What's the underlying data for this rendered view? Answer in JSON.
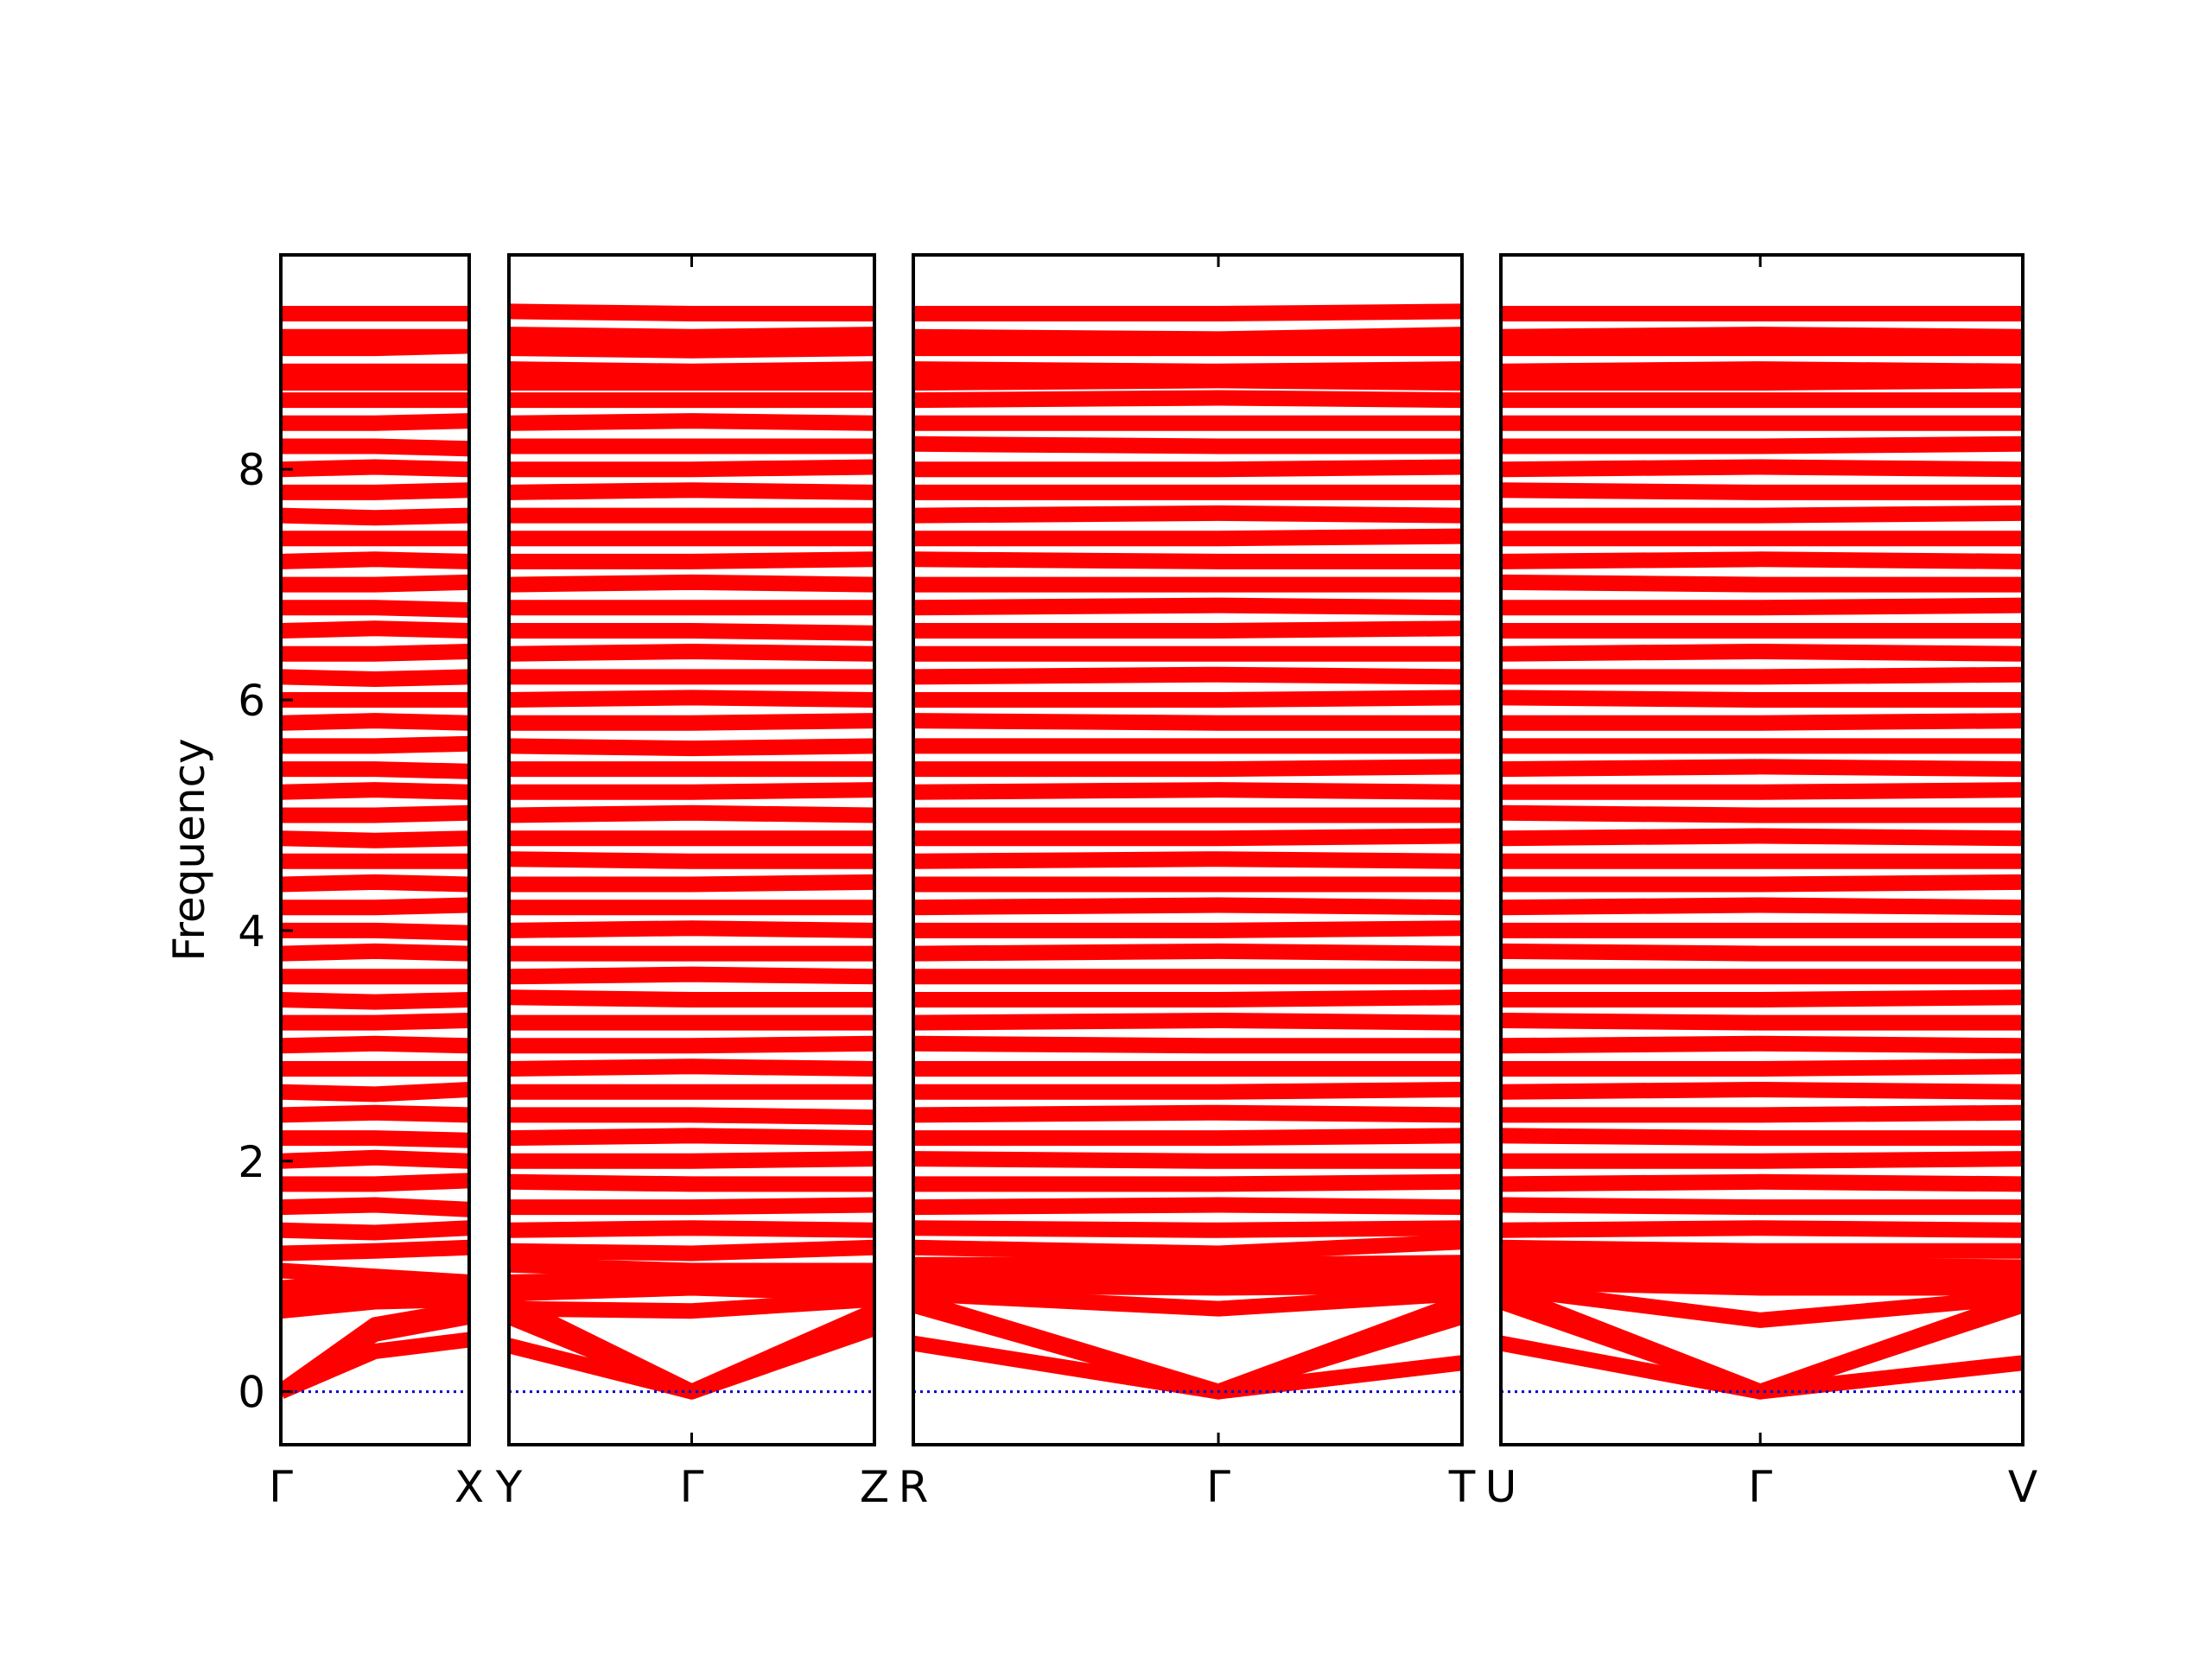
{
  "chart_data": [
    {
      "type": "line",
      "ylabel": "Frequency",
      "color": "#ff0000",
      "zero_line": {
        "value": 0,
        "color": "#0000cc"
      },
      "x": [
        0,
        0.5,
        1
      ],
      "xlim": [
        0,
        1
      ],
      "xticks": [
        {
          "value": 0,
          "label": "Γ"
        },
        {
          "value": 1,
          "label": "X"
        }
      ],
      "ylim": [
        -0.46,
        9.86
      ],
      "yticks": [
        0,
        2,
        4,
        6,
        8
      ],
      "bands": [
        [
          0,
          0.35,
          0.45
        ],
        [
          0,
          0.5,
          0.65
        ],
        [
          0,
          0.58,
          0.72
        ],
        [
          0.7,
          0.78,
          0.8
        ],
        [
          0.82,
          0.85,
          0.9
        ],
        [
          0.9,
          0.95,
          0.88
        ],
        [
          1.05,
          1.0,
          0.95
        ],
        [
          1.2,
          1.22,
          1.25
        ],
        [
          1.4,
          1.38,
          1.42
        ],
        [
          1.6,
          1.62,
          1.58
        ],
        [
          1.8,
          1.8,
          1.83
        ],
        [
          2.0,
          2.03,
          2.0
        ],
        [
          2.2,
          2.2,
          2.18
        ],
        [
          2.4,
          2.42,
          2.4
        ],
        [
          2.6,
          2.58,
          2.62
        ],
        [
          2.8,
          2.8,
          2.8
        ],
        [
          3.0,
          3.02,
          3.0
        ],
        [
          3.2,
          3.2,
          3.22
        ],
        [
          3.4,
          3.38,
          3.4
        ],
        [
          3.6,
          3.6,
          3.6
        ],
        [
          3.8,
          3.82,
          3.8
        ],
        [
          4.0,
          4.0,
          3.98
        ],
        [
          4.2,
          4.2,
          4.22
        ],
        [
          4.4,
          4.42,
          4.4
        ],
        [
          4.6,
          4.6,
          4.6
        ],
        [
          4.8,
          4.78,
          4.8
        ],
        [
          5.0,
          5.0,
          5.02
        ],
        [
          5.2,
          5.22,
          5.2
        ],
        [
          5.4,
          5.4,
          5.38
        ],
        [
          5.6,
          5.6,
          5.62
        ],
        [
          5.8,
          5.82,
          5.8
        ],
        [
          6.0,
          6.0,
          6.0
        ],
        [
          6.2,
          6.18,
          6.2
        ],
        [
          6.4,
          6.4,
          6.42
        ],
        [
          6.6,
          6.62,
          6.6
        ],
        [
          6.8,
          6.8,
          6.78
        ],
        [
          7.0,
          7.0,
          7.02
        ],
        [
          7.2,
          7.22,
          7.2
        ],
        [
          7.4,
          7.4,
          7.4
        ],
        [
          7.6,
          7.58,
          7.6
        ],
        [
          7.8,
          7.8,
          7.82
        ],
        [
          8.0,
          8.02,
          8.0
        ],
        [
          8.2,
          8.2,
          8.18
        ],
        [
          8.4,
          8.4,
          8.42
        ],
        [
          8.6,
          8.6,
          8.6
        ],
        [
          8.75,
          8.75,
          8.75
        ],
        [
          8.85,
          8.85,
          8.85
        ],
        [
          9.05,
          9.05,
          9.07
        ],
        [
          9.15,
          9.15,
          9.15
        ],
        [
          9.35,
          9.35,
          9.35
        ]
      ]
    },
    {
      "type": "line",
      "color": "#ff0000",
      "zero_line": {
        "value": 0,
        "color": "#0000cc"
      },
      "x": [
        0,
        0.5,
        1
      ],
      "xlim": [
        0,
        1
      ],
      "xticks": [
        {
          "value": 0,
          "label": "Y"
        },
        {
          "value": 0.5,
          "label": "Γ"
        },
        {
          "value": 1,
          "label": "Z"
        }
      ],
      "ylim": [
        -0.46,
        9.86
      ],
      "bands": [
        [
          0.4,
          0,
          0.55
        ],
        [
          0.65,
          0,
          0.6
        ],
        [
          0.78,
          0,
          0.7
        ],
        [
          0.72,
          0.7,
          0.8
        ],
        [
          0.85,
          0.9,
          0.85
        ],
        [
          0.95,
          0.98,
          0.95
        ],
        [
          1.1,
          1.05,
          1.05
        ],
        [
          1.22,
          1.2,
          1.25
        ],
        [
          1.4,
          1.42,
          1.4
        ],
        [
          1.6,
          1.6,
          1.62
        ],
        [
          1.82,
          1.8,
          1.8
        ],
        [
          2.0,
          2.0,
          2.02
        ],
        [
          2.2,
          2.22,
          2.2
        ],
        [
          2.4,
          2.4,
          2.38
        ],
        [
          2.6,
          2.6,
          2.6
        ],
        [
          2.8,
          2.82,
          2.8
        ],
        [
          3.0,
          3.0,
          3.02
        ],
        [
          3.2,
          3.2,
          3.2
        ],
        [
          3.42,
          3.4,
          3.4
        ],
        [
          3.6,
          3.62,
          3.6
        ],
        [
          3.8,
          3.8,
          3.8
        ],
        [
          4.0,
          4.02,
          4.0
        ],
        [
          4.2,
          4.2,
          4.2
        ],
        [
          4.4,
          4.4,
          4.42
        ],
        [
          4.62,
          4.6,
          4.6
        ],
        [
          4.8,
          4.8,
          4.8
        ],
        [
          5.0,
          5.02,
          5.0
        ],
        [
          5.2,
          5.2,
          5.22
        ],
        [
          5.4,
          5.4,
          5.4
        ],
        [
          5.6,
          5.58,
          5.6
        ],
        [
          5.8,
          5.8,
          5.82
        ],
        [
          6.0,
          6.02,
          6.0
        ],
        [
          6.2,
          6.2,
          6.2
        ],
        [
          6.4,
          6.42,
          6.4
        ],
        [
          6.6,
          6.6,
          6.58
        ],
        [
          6.8,
          6.8,
          6.8
        ],
        [
          7.0,
          7.02,
          7.0
        ],
        [
          7.2,
          7.2,
          7.22
        ],
        [
          7.4,
          7.4,
          7.4
        ],
        [
          7.6,
          7.6,
          7.6
        ],
        [
          7.8,
          7.82,
          7.8
        ],
        [
          8.0,
          8.0,
          8.02
        ],
        [
          8.2,
          8.2,
          8.2
        ],
        [
          8.4,
          8.42,
          8.4
        ],
        [
          8.6,
          8.6,
          8.6
        ],
        [
          8.75,
          8.75,
          8.75
        ],
        [
          8.87,
          8.85,
          8.87
        ],
        [
          9.05,
          9.03,
          9.05
        ],
        [
          9.17,
          9.15,
          9.17
        ],
        [
          9.37,
          9.35,
          9.35
        ]
      ]
    },
    {
      "type": "line",
      "color": "#ff0000",
      "zero_line": {
        "value": 0,
        "color": "#0000cc"
      },
      "x": [
        0,
        0.556,
        1
      ],
      "xlim": [
        0,
        1
      ],
      "xticks": [
        {
          "value": 0,
          "label": "R"
        },
        {
          "value": 0.556,
          "label": "Γ"
        },
        {
          "value": 1,
          "label": "T"
        }
      ],
      "ylim": [
        -0.46,
        9.86
      ],
      "bands": [
        [
          0.42,
          0,
          0.25
        ],
        [
          0.75,
          0,
          0.65
        ],
        [
          0.8,
          0,
          0.78
        ],
        [
          0.85,
          0.72,
          0.85
        ],
        [
          0.92,
          0.9,
          0.92
        ],
        [
          1.0,
          0.98,
          1.0
        ],
        [
          1.1,
          1.1,
          1.12
        ],
        [
          1.25,
          1.2,
          1.3
        ],
        [
          1.42,
          1.4,
          1.42
        ],
        [
          1.6,
          1.62,
          1.6
        ],
        [
          1.8,
          1.8,
          1.82
        ],
        [
          2.02,
          2.0,
          2.0
        ],
        [
          2.2,
          2.2,
          2.22
        ],
        [
          2.4,
          2.42,
          2.4
        ],
        [
          2.6,
          2.6,
          2.62
        ],
        [
          2.8,
          2.8,
          2.8
        ],
        [
          3.02,
          3.0,
          3.0
        ],
        [
          3.2,
          3.22,
          3.2
        ],
        [
          3.4,
          3.4,
          3.42
        ],
        [
          3.6,
          3.6,
          3.6
        ],
        [
          3.8,
          3.82,
          3.8
        ],
        [
          4.0,
          4.0,
          4.02
        ],
        [
          4.2,
          4.22,
          4.2
        ],
        [
          4.4,
          4.4,
          4.4
        ],
        [
          4.6,
          4.62,
          4.6
        ],
        [
          4.8,
          4.8,
          4.82
        ],
        [
          5.0,
          5.0,
          5.0
        ],
        [
          5.2,
          5.22,
          5.2
        ],
        [
          5.4,
          5.4,
          5.42
        ],
        [
          5.6,
          5.6,
          5.6
        ],
        [
          5.82,
          5.8,
          5.8
        ],
        [
          6.0,
          6.0,
          6.02
        ],
        [
          6.2,
          6.22,
          6.2
        ],
        [
          6.4,
          6.4,
          6.4
        ],
        [
          6.6,
          6.6,
          6.62
        ],
        [
          6.8,
          6.82,
          6.8
        ],
        [
          7.0,
          7.0,
          7.0
        ],
        [
          7.22,
          7.2,
          7.2
        ],
        [
          7.4,
          7.4,
          7.42
        ],
        [
          7.6,
          7.62,
          7.6
        ],
        [
          7.8,
          7.8,
          7.8
        ],
        [
          8.0,
          8.0,
          8.02
        ],
        [
          8.22,
          8.2,
          8.2
        ],
        [
          8.4,
          8.4,
          8.4
        ],
        [
          8.6,
          8.62,
          8.6
        ],
        [
          8.75,
          8.77,
          8.75
        ],
        [
          8.87,
          8.85,
          8.87
        ],
        [
          9.05,
          9.05,
          9.05
        ],
        [
          9.15,
          9.13,
          9.17
        ],
        [
          9.35,
          9.35,
          9.37
        ]
      ]
    },
    {
      "type": "line",
      "color": "#ff0000",
      "zero_line": {
        "value": 0,
        "color": "#0000cc"
      },
      "x": [
        0,
        0.497,
        1
      ],
      "xlim": [
        0,
        1
      ],
      "xticks": [
        {
          "value": 0,
          "label": "U"
        },
        {
          "value": 0.497,
          "label": "Γ"
        },
        {
          "value": 1,
          "label": "V"
        }
      ],
      "ylim": [
        -0.46,
        9.86
      ],
      "bands": [
        [
          0.42,
          0,
          0.25
        ],
        [
          0.78,
          0,
          0.75
        ],
        [
          0.88,
          0,
          0.8
        ],
        [
          0.9,
          0.62,
          0.82
        ],
        [
          0.95,
          0.9,
          0.9
        ],
        [
          1.02,
          1.0,
          1.0
        ],
        [
          1.12,
          1.1,
          1.08
        ],
        [
          1.25,
          1.22,
          1.22
        ],
        [
          1.4,
          1.42,
          1.4
        ],
        [
          1.62,
          1.6,
          1.6
        ],
        [
          1.8,
          1.82,
          1.8
        ],
        [
          2.0,
          2.0,
          2.02
        ],
        [
          2.22,
          2.2,
          2.2
        ],
        [
          2.4,
          2.4,
          2.42
        ],
        [
          2.6,
          2.62,
          2.6
        ],
        [
          2.8,
          2.8,
          2.82
        ],
        [
          3.0,
          3.02,
          3.0
        ],
        [
          3.22,
          3.2,
          3.2
        ],
        [
          3.4,
          3.4,
          3.42
        ],
        [
          3.6,
          3.6,
          3.6
        ],
        [
          3.82,
          3.8,
          3.8
        ],
        [
          4.0,
          4.0,
          4.0
        ],
        [
          4.2,
          4.22,
          4.2
        ],
        [
          4.4,
          4.4,
          4.42
        ],
        [
          4.6,
          4.6,
          4.6
        ],
        [
          4.8,
          4.82,
          4.8
        ],
        [
          5.02,
          5.0,
          5.0
        ],
        [
          5.2,
          5.2,
          5.22
        ],
        [
          5.4,
          5.42,
          5.4
        ],
        [
          5.6,
          5.6,
          5.6
        ],
        [
          5.8,
          5.8,
          5.82
        ],
        [
          6.02,
          6.0,
          6.0
        ],
        [
          6.2,
          6.2,
          6.22
        ],
        [
          6.4,
          6.42,
          6.4
        ],
        [
          6.6,
          6.6,
          6.6
        ],
        [
          6.8,
          6.8,
          6.82
        ],
        [
          7.02,
          7.0,
          7.0
        ],
        [
          7.2,
          7.22,
          7.2
        ],
        [
          7.4,
          7.4,
          7.4
        ],
        [
          7.6,
          7.6,
          7.62
        ],
        [
          7.82,
          7.8,
          7.8
        ],
        [
          8.0,
          8.02,
          8.0
        ],
        [
          8.2,
          8.2,
          8.22
        ],
        [
          8.4,
          8.4,
          8.4
        ],
        [
          8.6,
          8.6,
          8.6
        ],
        [
          8.75,
          8.75,
          8.77
        ],
        [
          8.85,
          8.87,
          8.85
        ],
        [
          9.05,
          9.05,
          9.05
        ],
        [
          9.15,
          9.17,
          9.15
        ],
        [
          9.35,
          9.35,
          9.35
        ]
      ]
    }
  ]
}
